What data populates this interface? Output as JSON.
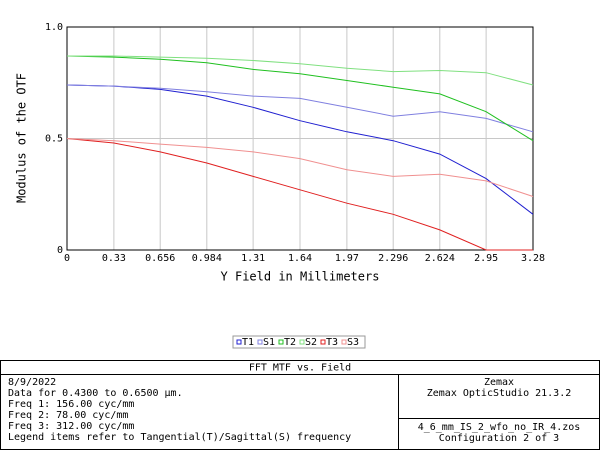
{
  "chart_data": {
    "type": "line",
    "xlabel": "Y Field in Millimeters",
    "ylabel": "Modulus of the OTF",
    "x": [
      0,
      0.33,
      0.656,
      0.984,
      1.31,
      1.64,
      1.97,
      2.296,
      2.624,
      2.95,
      3.28
    ],
    "xlim": [
      0,
      3.28
    ],
    "xticks": [
      0,
      0.33,
      0.656,
      0.984,
      1.31,
      1.64,
      1.97,
      2.296,
      2.624,
      2.95,
      3.28
    ],
    "ylim": [
      0,
      1
    ],
    "yticks": [
      0,
      0.5,
      {
        "value": 1,
        "label": "1.0"
      }
    ],
    "grid": true,
    "series": [
      {
        "name": "T1",
        "color": "#2020d0",
        "values": [
          0.74,
          0.735,
          0.72,
          0.69,
          0.64,
          0.58,
          0.53,
          0.49,
          0.43,
          0.32,
          0.16
        ]
      },
      {
        "name": "S1",
        "color": "#8080e0",
        "values": [
          0.74,
          0.735,
          0.725,
          0.71,
          0.69,
          0.68,
          0.64,
          0.6,
          0.62,
          0.59,
          0.53
        ]
      },
      {
        "name": "T2",
        "color": "#20c020",
        "values": [
          0.87,
          0.865,
          0.855,
          0.84,
          0.81,
          0.79,
          0.76,
          0.73,
          0.7,
          0.62,
          0.49
        ]
      },
      {
        "name": "S2",
        "color": "#80e080",
        "values": [
          0.87,
          0.87,
          0.865,
          0.86,
          0.85,
          0.835,
          0.815,
          0.8,
          0.805,
          0.795,
          0.74
        ]
      },
      {
        "name": "T3",
        "color": "#e02020",
        "values": [
          0.5,
          0.48,
          0.44,
          0.39,
          0.33,
          0.27,
          0.21,
          0.16,
          0.09,
          0,
          0
        ]
      },
      {
        "name": "S3",
        "color": "#f09090",
        "values": [
          0.5,
          0.49,
          0.475,
          0.46,
          0.44,
          0.41,
          0.36,
          0.33,
          0.34,
          0.31,
          0.24
        ]
      }
    ]
  },
  "info_box": {
    "title": "FFT MTF vs. Field",
    "left_lines": [
      "8/9/2022",
      "Data for 0.4300 to 0.6500 µm.",
      "Freq 1:  156.00 cyc/mm",
      "Freq 2:   78.00 cyc/mm",
      "Freq 3:  312.00 cyc/mm",
      "Legend items refer to Tangential(T)/Sagittal(S) frequency"
    ],
    "right_top": [
      "Zemax",
      "Zemax OpticStudio 21.3.2"
    ],
    "right_bottom": [
      "4_6_mm_IS_2_wfo_no_IR_4.zos",
      "Configuration 2 of 3"
    ]
  }
}
